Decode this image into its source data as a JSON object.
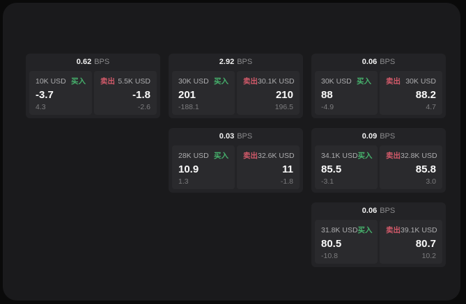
{
  "labels": {
    "buy": "买入",
    "sell": "卖出",
    "bps_unit": "BPS"
  },
  "colors": {
    "green": "#46b16c",
    "red": "#d25a6a",
    "window_bg": "#1a1a1c",
    "card_bg": "#232326",
    "panel_bg": "#2a2a2d"
  },
  "cards": [
    {
      "row": 1,
      "col": 1,
      "bps": "0.62",
      "buy": {
        "amount": "10K USD",
        "price": "-3.7",
        "delta": "4.3"
      },
      "sell": {
        "amount": "5.5K USD",
        "price": "-1.8",
        "delta": "-2.6"
      }
    },
    {
      "row": 1,
      "col": 2,
      "bps": "2.92",
      "buy": {
        "amount": "30K USD",
        "price": "201",
        "delta": "-188.1"
      },
      "sell": {
        "amount": "30.1K USD",
        "price": "210",
        "delta": "196.5"
      }
    },
    {
      "row": 1,
      "col": 3,
      "bps": "0.06",
      "buy": {
        "amount": "30K USD",
        "price": "88",
        "delta": "-4.9"
      },
      "sell": {
        "amount": "30K USD",
        "price": "88.2",
        "delta": "4.7"
      }
    },
    {
      "row": 2,
      "col": 2,
      "bps": "0.03",
      "buy": {
        "amount": "28K USD",
        "price": "10.9",
        "delta": "1.3"
      },
      "sell": {
        "amount": "32.6K USD",
        "price": "11",
        "delta": "-1.8"
      }
    },
    {
      "row": 2,
      "col": 3,
      "bps": "0.09",
      "buy": {
        "amount": "34.1K USD",
        "price": "85.5",
        "delta": "-3.1"
      },
      "sell": {
        "amount": "32.8K USD",
        "price": "85.8",
        "delta": "3.0"
      }
    },
    {
      "row": 3,
      "col": 3,
      "bps": "0.06",
      "buy": {
        "amount": "31.8K USD",
        "price": "80.5",
        "delta": "-10.8"
      },
      "sell": {
        "amount": "39.1K USD",
        "price": "80.7",
        "delta": "10.2"
      }
    }
  ]
}
